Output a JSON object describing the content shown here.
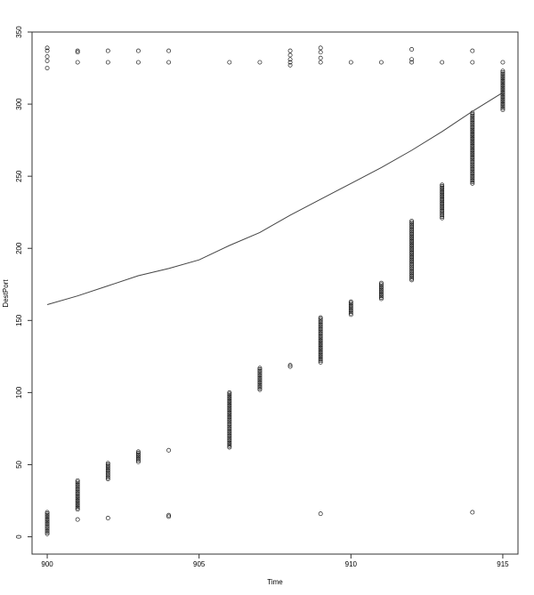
{
  "chart_data": {
    "type": "scatter",
    "xlabel": "Time",
    "ylabel": "DestPort",
    "xlim": [
      899.5,
      915.5
    ],
    "ylim": [
      -12,
      350
    ],
    "xticks": [
      900,
      905,
      910,
      915
    ],
    "yticks": [
      0,
      50,
      100,
      150,
      200,
      250,
      300,
      350
    ],
    "grid": false,
    "legend": "none",
    "point_groups": [
      {
        "x": 900,
        "y_from": 2,
        "y_to": 17,
        "step": 1
      },
      {
        "x": 901,
        "y_from": 19,
        "y_to": 39,
        "step": 1
      },
      {
        "x": 902,
        "y_from": 40,
        "y_to": 51,
        "step": 1
      },
      {
        "x": 903,
        "y_from": 52,
        "y_to": 59,
        "step": 1
      },
      {
        "x": 906,
        "y_from": 62,
        "y_to": 100,
        "step": 1
      },
      {
        "x": 907,
        "y_from": 102,
        "y_to": 117,
        "step": 1
      },
      {
        "x": 909,
        "y_from": 121,
        "y_to": 152,
        "step": 1
      },
      {
        "x": 910,
        "y_from": 154,
        "y_to": 163,
        "step": 1
      },
      {
        "x": 911,
        "y_from": 165,
        "y_to": 176,
        "step": 1
      },
      {
        "x": 912,
        "y_from": 178,
        "y_to": 219,
        "step": 1
      },
      {
        "x": 913,
        "y_from": 221,
        "y_to": 244,
        "step": 1
      },
      {
        "x": 914,
        "y_from": 245,
        "y_to": 294,
        "step": 1
      },
      {
        "x": 915,
        "y_from": 296,
        "y_to": 323,
        "step": 1
      }
    ],
    "points": [
      [
        900,
        325
      ],
      [
        900,
        330
      ],
      [
        900,
        333
      ],
      [
        900,
        337
      ],
      [
        900,
        339
      ],
      [
        901,
        12
      ],
      [
        901,
        329
      ],
      [
        901,
        336
      ],
      [
        901,
        337
      ],
      [
        902,
        13
      ],
      [
        902,
        329
      ],
      [
        902,
        337
      ],
      [
        903,
        329
      ],
      [
        903,
        337
      ],
      [
        904,
        14
      ],
      [
        904,
        15
      ],
      [
        904,
        60
      ],
      [
        904,
        329
      ],
      [
        904,
        337
      ],
      [
        906,
        329
      ],
      [
        907,
        329
      ],
      [
        908,
        118
      ],
      [
        908,
        119
      ],
      [
        908,
        327
      ],
      [
        908,
        329
      ],
      [
        908,
        331
      ],
      [
        908,
        334
      ],
      [
        908,
        337
      ],
      [
        909,
        16
      ],
      [
        909,
        329
      ],
      [
        909,
        332
      ],
      [
        909,
        336
      ],
      [
        909,
        339
      ],
      [
        910,
        329
      ],
      [
        911,
        329
      ],
      [
        912,
        329
      ],
      [
        912,
        331
      ],
      [
        912,
        338
      ],
      [
        913,
        329
      ],
      [
        914,
        17
      ],
      [
        914,
        329
      ],
      [
        914,
        337
      ],
      [
        915,
        329
      ]
    ],
    "smooth_line": {
      "x": [
        900,
        901,
        902,
        903,
        904,
        905,
        906,
        907,
        908,
        909,
        910,
        911,
        912,
        913,
        914,
        915
      ],
      "y": [
        161,
        167,
        174,
        181,
        186,
        192,
        202,
        211,
        223,
        234,
        245,
        256,
        268,
        281,
        295,
        308
      ]
    }
  }
}
